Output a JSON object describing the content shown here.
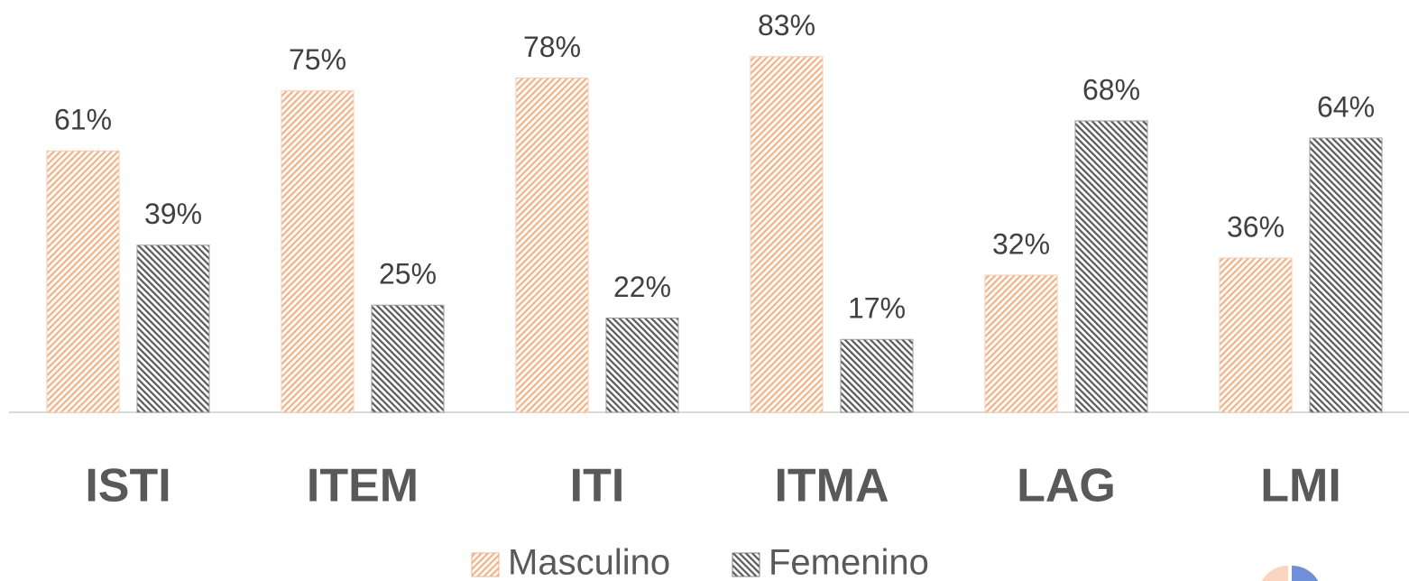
{
  "chart_data": {
    "type": "bar",
    "categories": [
      "ISTI",
      "ITEM",
      "ITI",
      "ITMA",
      "LAG",
      "LMI"
    ],
    "series": [
      {
        "name": "Masculino",
        "color": "#f4b183",
        "values": [
          61,
          75,
          78,
          83,
          32,
          36
        ],
        "value_labels": [
          "61%",
          "75%",
          "78%",
          "83%",
          "32%",
          "36%"
        ]
      },
      {
        "name": "Femenino",
        "color": "#595959",
        "values": [
          39,
          25,
          22,
          17,
          68,
          64
        ],
        "value_labels": [
          "39%",
          "25%",
          "22%",
          "17%",
          "68%",
          "64%"
        ]
      }
    ]
  }
}
